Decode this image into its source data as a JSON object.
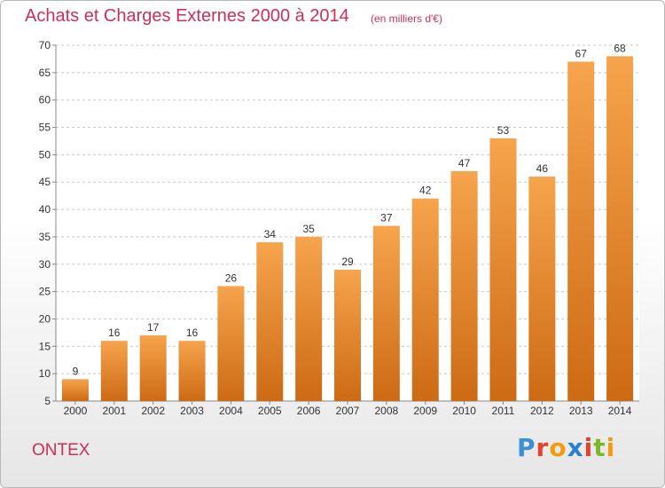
{
  "header": {
    "title": "Achats et Charges Externes 2000 à 2014",
    "subtitle": "(en milliers d'€)"
  },
  "footer": {
    "commune": "ONTEX",
    "logo_text": "Proxiti",
    "logo_colors": [
      "#3b8fd6",
      "#e8402d",
      "#f39c12",
      "#2a7fd0",
      "#e8402d",
      "#7ab928",
      "#f39c12"
    ]
  },
  "colors": {
    "bar_top": "#f6a44d",
    "bar_bottom": "#cd6a14",
    "accent": "#cc2f5a"
  },
  "chart_data": {
    "type": "bar",
    "title": "Achats et Charges Externes 2000 à 2014",
    "subtitle": "(en milliers d'€)",
    "categories": [
      "2000",
      "2001",
      "2002",
      "2003",
      "2004",
      "2005",
      "2006",
      "2007",
      "2008",
      "2009",
      "2010",
      "2011",
      "2012",
      "2013",
      "2014"
    ],
    "values": [
      9,
      16,
      17,
      16,
      26,
      34,
      35,
      29,
      37,
      42,
      47,
      53,
      46,
      67,
      68
    ],
    "ylim": [
      5,
      70
    ],
    "yticks": [
      5,
      10,
      15,
      20,
      25,
      30,
      35,
      40,
      45,
      50,
      55,
      60,
      65,
      70
    ],
    "grid": true,
    "legend": "none"
  }
}
